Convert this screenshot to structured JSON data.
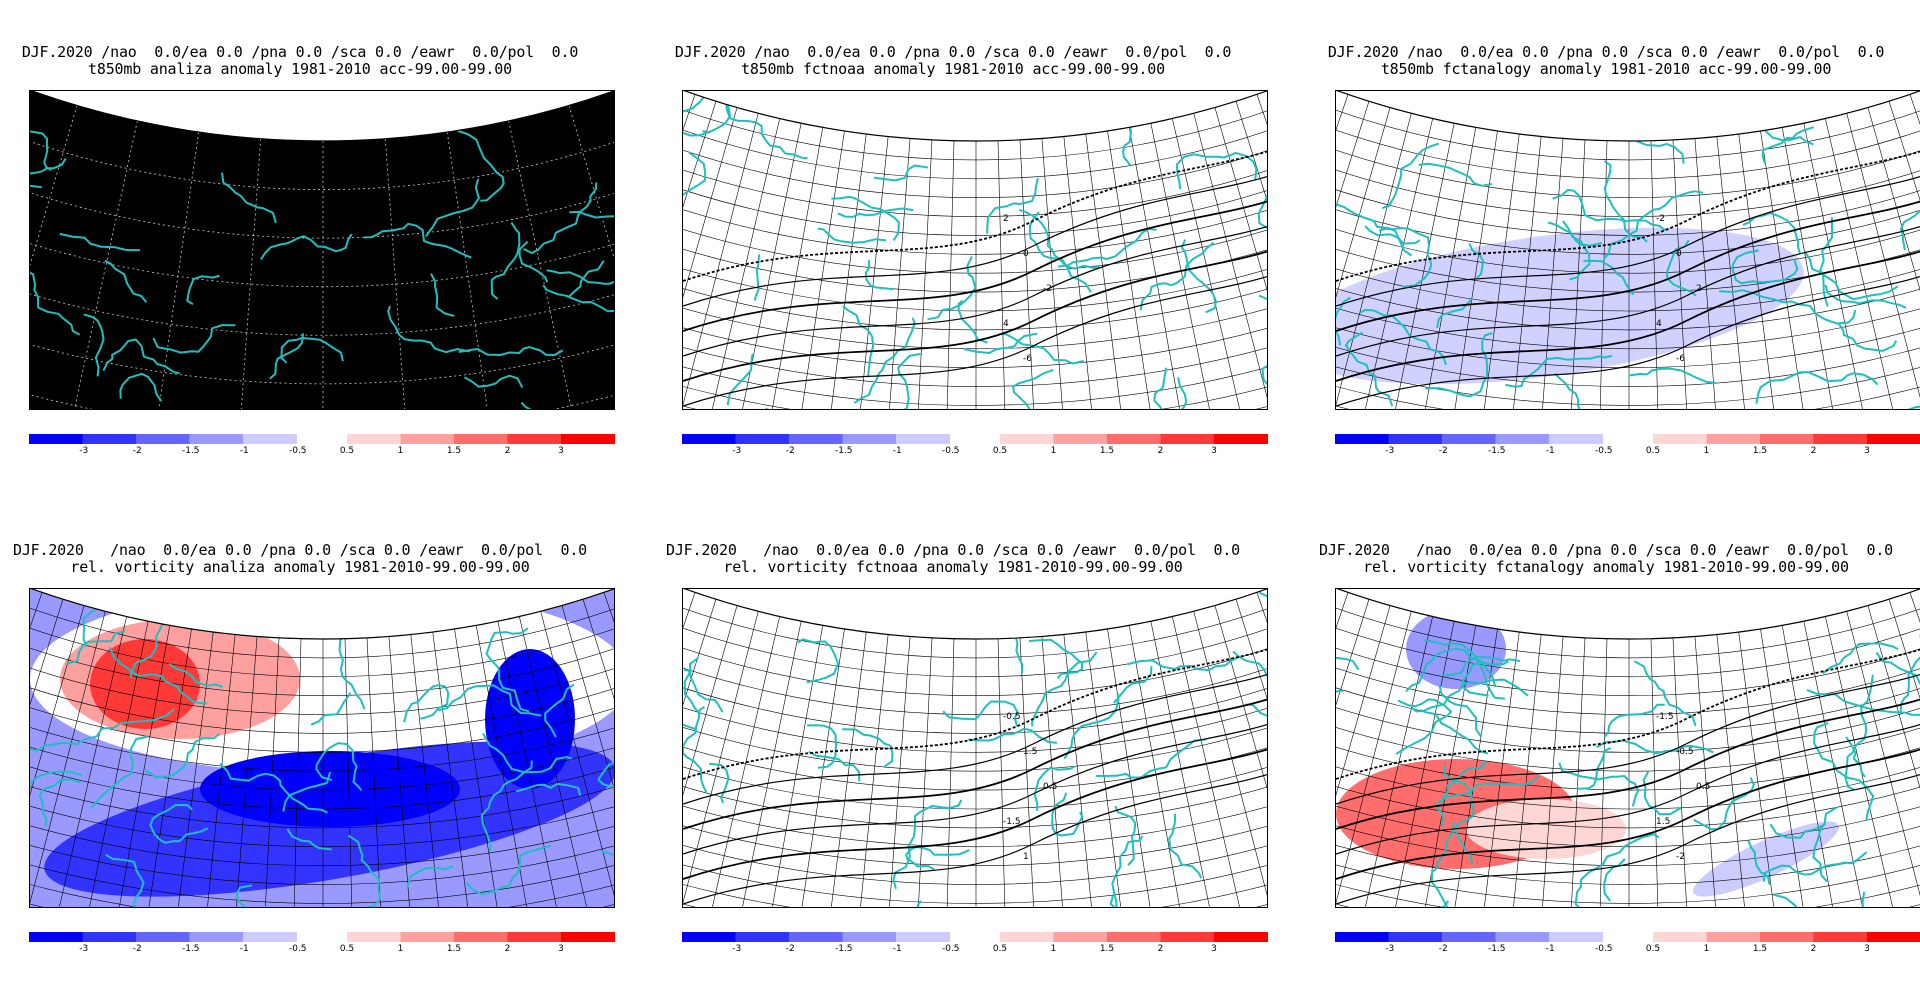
{
  "panels": [
    {
      "id": "p1",
      "title_line1": "DJF.2020 /nao  0.0/ea 0.0 /pna 0.0 /sca 0.0 /eawr  0.0/pol  0.0",
      "title_line2": "t850mb analiza anomaly 1981-2010 acc-99.00-99.00",
      "background": "#000000",
      "shading": "none"
    },
    {
      "id": "p2",
      "title_line1": "DJF.2020 /nao  0.0/ea 0.0 /pna 0.0 /sca 0.0 /eawr  0.0/pol  0.0",
      "title_line2": "t850mb fctnoaa anomaly 1981-2010 acc-99.00-99.00",
      "background": "#ffffff",
      "shading": "none",
      "contour_labels": [
        "2",
        "0",
        "-2",
        "4",
        "-6"
      ]
    },
    {
      "id": "p3",
      "title_line1": "DJF.2020 /nao  0.0/ea 0.0 /pna 0.0 /sca 0.0 /eawr  0.0/pol  0.0",
      "title_line2": "t850mb fctanalogy anomaly 1981-2010 acc-99.00-99.00",
      "background": "#ffffff",
      "shading": "light-blue-band",
      "contour_labels": [
        "-2",
        "0",
        "2",
        "4",
        "-6"
      ]
    },
    {
      "id": "p4",
      "title_line1": "DJF.2020   /nao  0.0/ea 0.0 /pna 0.0 /sca 0.0 /eawr  0.0/pol  0.0",
      "title_line2": "rel. vorticity analiza anomaly 1981-2010-99.00-99.00",
      "background": "#ffffff",
      "shading": "red-north-blue-south"
    },
    {
      "id": "p5",
      "title_line1": "DJF.2020   /nao  0.0/ea 0.0 /pna 0.0 /sca 0.0 /eawr  0.0/pol  0.0",
      "title_line2": "rel. vorticity fctnoaa anomaly 1981-2010-99.00-99.00",
      "background": "#ffffff",
      "shading": "none",
      "contour_labels": [
        "-0.5",
        "1.5",
        "0.5",
        "-1.5",
        "1"
      ]
    },
    {
      "id": "p6",
      "title_line1": "DJF.2020   /nao  0.0/ea 0.0 /pna 0.0 /sca 0.0 /eawr  0.0/pol  0.0",
      "title_line2": "rel. vorticity fctanalogy anomaly 1981-2010-99.00-99.00",
      "background": "#ffffff",
      "shading": "red-southwest-blue-northwest",
      "contour_labels": [
        "-1.5",
        "-0.5",
        "0.5",
        "1.5",
        "-2"
      ]
    }
  ],
  "colorbar": {
    "negative_colors": [
      "#0000ff",
      "#3333ff",
      "#6666ff",
      "#9999ff",
      "#ccccff"
    ],
    "positive_colors": [
      "#ffd6d6",
      "#ffa0a0",
      "#ff6d6d",
      "#ff3838",
      "#ff0000"
    ],
    "negative_ticks": [
      "-3",
      "-2",
      "-1.5",
      "-1",
      "-0.5"
    ],
    "positive_ticks": [
      "0.5",
      "1",
      "1.5",
      "2",
      "3"
    ]
  },
  "colors": {
    "coastline": "#1fbfbf",
    "grid": "#000000",
    "graticule_on_black": "#cccccc"
  }
}
